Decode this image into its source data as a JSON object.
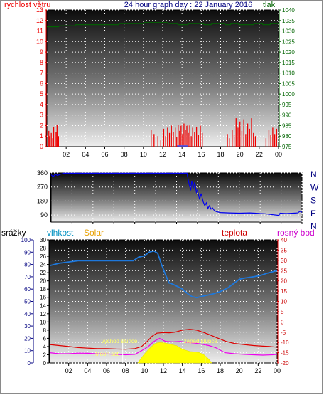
{
  "charts": [
    {
      "type": "bar",
      "title": "24 hour graph day : 22 January 2016",
      "left_axis_label": "rychlost větru",
      "right_axis_label": "tlak",
      "x_ticks": [
        "02",
        "04",
        "06",
        "08",
        "10",
        "12",
        "14",
        "16",
        "18",
        "20",
        "22",
        "00"
      ],
      "left_ticks": [
        "0",
        "1",
        "2",
        "3",
        "4",
        "5",
        "6",
        "7",
        "8",
        "9",
        "10",
        "11",
        "12",
        "13"
      ],
      "right_ticks": [
        "975",
        "980",
        "985",
        "990",
        "995",
        "1000",
        "1005",
        "1010",
        "1015",
        "1020",
        "1025",
        "1030",
        "1035",
        "1040"
      ],
      "colors": {
        "wind": "#ee0000",
        "pressure": "#006400",
        "title": "#000080"
      }
    },
    {
      "type": "line",
      "left_ticks": [
        "90",
        "180",
        "270",
        "360"
      ],
      "compass_ticks": [
        "N",
        "W",
        "S",
        "E",
        "N"
      ],
      "x_ticks": [
        "02",
        "04",
        "06",
        "08",
        "10",
        "12",
        "14",
        "16",
        "18",
        "20",
        "22",
        "00"
      ],
      "colors": {
        "direction": "#0000ee",
        "compass": "#000080"
      }
    },
    {
      "type": "line",
      "labels": {
        "rain": "srážky",
        "humidity": "vlhkost",
        "solar": "Solar",
        "temperature": "teplota",
        "dewpoint": "rosný bod"
      },
      "rain_ticks": [
        "0",
        "10",
        "20",
        "30",
        "40",
        "50",
        "60",
        "70",
        "80",
        "90",
        "100"
      ],
      "solar_ticks": [
        "0",
        "2",
        "4",
        "6",
        "8",
        "10",
        "12",
        "14",
        "16",
        "18",
        "20",
        "22",
        "24",
        "26",
        "28",
        "30"
      ],
      "temp_ticks": [
        "-20",
        "-15",
        "-10",
        "-5",
        "0",
        "5",
        "10",
        "15",
        "20",
        "25",
        "30",
        "35",
        "40"
      ],
      "x_ticks": [
        "02",
        "04",
        "06",
        "08",
        "10",
        "12",
        "14",
        "16",
        "18",
        "20",
        "22",
        "00"
      ],
      "annotations": {
        "sunrise": "východ slunce",
        "sunset": "západ slunce",
        "moonset": "Moon set"
      },
      "colors": {
        "rain": "#000080",
        "humidity": "#1e78dc",
        "solar": "#ffff00",
        "temperature": "#dd0000",
        "dewpoint": "#ee00ee",
        "rain_label": "#000000",
        "humidity_label": "#0090c0",
        "solar_label": "#e8a000",
        "temp_label": "#cc0000",
        "dew_label": "#cc00cc"
      }
    }
  ],
  "chart_data": [
    {
      "type": "bar",
      "name": "wind and pressure",
      "x_range_hours": [
        0,
        24
      ],
      "wind_ylim": [
        0,
        13
      ],
      "pressure_ylim": [
        975,
        1040
      ],
      "wind_bars": [
        [
          0.2,
          1.5
        ],
        [
          0.3,
          1.0
        ],
        [
          0.45,
          1.3
        ],
        [
          0.6,
          0.8
        ],
        [
          0.7,
          1.9
        ],
        [
          0.95,
          1.4
        ],
        [
          1.05,
          2.1
        ],
        [
          1.2,
          1.0
        ],
        [
          10.8,
          1.6
        ],
        [
          11.1,
          1.2
        ],
        [
          11.5,
          1.0
        ],
        [
          11.8,
          0.6
        ],
        [
          12.1,
          1.7
        ],
        [
          12.3,
          1.0
        ],
        [
          12.5,
          1.8
        ],
        [
          12.7,
          1.3
        ],
        [
          12.9,
          2.0
        ],
        [
          13.1,
          1.4
        ],
        [
          13.3,
          1.8
        ],
        [
          13.45,
          0.9
        ],
        [
          13.6,
          2.1
        ],
        [
          13.75,
          1.5
        ],
        [
          13.9,
          2.0
        ],
        [
          14.05,
          1.2
        ],
        [
          14.2,
          2.2
        ],
        [
          14.35,
          1.6
        ],
        [
          14.5,
          2.0
        ],
        [
          14.65,
          1.3
        ],
        [
          14.8,
          2.1
        ],
        [
          14.95,
          1.0
        ],
        [
          15.1,
          1.8
        ],
        [
          15.3,
          1.4
        ],
        [
          15.5,
          1.9
        ],
        [
          15.7,
          1.1
        ],
        [
          15.9,
          2.0
        ],
        [
          16.1,
          1.3
        ],
        [
          18.7,
          1.2
        ],
        [
          18.9,
          0.8
        ],
        [
          19.2,
          1.6
        ],
        [
          19.4,
          1.1
        ],
        [
          19.6,
          2.7
        ],
        [
          19.8,
          1.8
        ],
        [
          20.0,
          2.4
        ],
        [
          20.2,
          1.5
        ],
        [
          20.4,
          2.6
        ],
        [
          20.6,
          1.2
        ],
        [
          20.8,
          2.2
        ],
        [
          21.0,
          1.7
        ],
        [
          21.2,
          2.7
        ],
        [
          21.4,
          1.3
        ],
        [
          21.6,
          1.0
        ],
        [
          22.7,
          0.8
        ],
        [
          23.0,
          1.6
        ],
        [
          23.2,
          1.1
        ],
        [
          23.4,
          1.8
        ],
        [
          23.6,
          1.2
        ],
        [
          23.8,
          1.7
        ]
      ],
      "pressure_line": [
        [
          0,
          1032
        ],
        [
          1.2,
          1032
        ],
        [
          1.3,
          1032.5
        ],
        [
          2.9,
          1032.5
        ],
        [
          3.0,
          1033
        ],
        [
          7.4,
          1033
        ],
        [
          7.5,
          1033.5
        ],
        [
          10.0,
          1033.5
        ],
        [
          10.1,
          1034
        ],
        [
          12.5,
          1034
        ],
        [
          12.6,
          1033.5
        ],
        [
          13.5,
          1033.5
        ],
        [
          13.6,
          1033
        ],
        [
          14.6,
          1033
        ],
        [
          14.7,
          1033.5
        ],
        [
          16.2,
          1033.5
        ],
        [
          16.3,
          1033
        ],
        [
          17.0,
          1033
        ],
        [
          17.1,
          1033.5
        ],
        [
          18.4,
          1033.5
        ],
        [
          18.5,
          1033
        ],
        [
          19.0,
          1033
        ],
        [
          19.1,
          1033.5
        ],
        [
          19.8,
          1033.5
        ],
        [
          19.9,
          1033
        ],
        [
          21.4,
          1033
        ],
        [
          21.5,
          1033.5
        ],
        [
          22.3,
          1033.5
        ],
        [
          22.4,
          1033
        ],
        [
          23.1,
          1033
        ],
        [
          23.2,
          1033.5
        ],
        [
          24,
          1033.5
        ]
      ]
    },
    {
      "type": "line",
      "name": "wind direction",
      "x_range_hours": [
        0,
        24
      ],
      "ylim": [
        45,
        360
      ],
      "direction_line": [
        [
          0,
          348
        ],
        [
          0.2,
          336
        ],
        [
          0.4,
          352
        ],
        [
          0.6,
          344
        ],
        [
          0.9,
          352
        ],
        [
          1.2,
          358
        ],
        [
          13.0,
          358
        ],
        [
          13.2,
          290
        ],
        [
          13.35,
          248
        ],
        [
          13.45,
          310
        ],
        [
          13.6,
          262
        ],
        [
          13.75,
          300
        ],
        [
          13.9,
          236
        ],
        [
          14.0,
          250
        ],
        [
          14.2,
          190
        ],
        [
          14.35,
          228
        ],
        [
          14.55,
          175
        ],
        [
          14.7,
          150
        ],
        [
          14.85,
          168
        ],
        [
          15.0,
          132
        ],
        [
          15.15,
          150
        ],
        [
          15.3,
          128
        ],
        [
          15.45,
          136
        ],
        [
          15.6,
          120
        ],
        [
          15.8,
          112
        ],
        [
          16.2,
          106
        ],
        [
          17.0,
          104
        ],
        [
          18.0,
          102
        ],
        [
          19.0,
          104
        ],
        [
          19.5,
          102
        ],
        [
          20.0,
          100
        ],
        [
          20.5,
          98
        ],
        [
          21.0,
          94
        ],
        [
          21.8,
          88
        ],
        [
          21.9,
          102
        ],
        [
          22.5,
          100
        ],
        [
          23.2,
          102
        ],
        [
          23.6,
          104
        ],
        [
          23.8,
          114
        ],
        [
          24,
          108
        ]
      ]
    },
    {
      "type": "line",
      "name": "humidity, solar, temperature, dew point",
      "x_range_hours": [
        0,
        24
      ],
      "rain_ylim": [
        0,
        100
      ],
      "solar_ylim": [
        0,
        30
      ],
      "temp_ylim": [
        -20,
        40
      ],
      "humidity_line": [
        [
          0,
          79
        ],
        [
          1,
          81
        ],
        [
          2,
          82
        ],
        [
          3,
          83
        ],
        [
          4,
          83
        ],
        [
          5,
          83
        ],
        [
          6,
          83
        ],
        [
          7,
          83
        ],
        [
          8,
          83
        ],
        [
          8.8,
          83
        ],
        [
          9,
          84
        ],
        [
          9.4,
          86
        ],
        [
          10,
          87
        ],
        [
          10.5,
          90
        ],
        [
          11,
          91
        ],
        [
          11.4,
          89
        ],
        [
          11.8,
          80
        ],
        [
          12.2,
          72
        ],
        [
          12.6,
          65
        ],
        [
          13,
          64
        ],
        [
          13.5,
          62
        ],
        [
          14,
          60
        ],
        [
          14.6,
          56
        ],
        [
          15,
          54
        ],
        [
          15.5,
          53
        ],
        [
          16,
          54
        ],
        [
          16.6,
          55
        ],
        [
          17.2,
          56
        ],
        [
          18,
          58
        ],
        [
          18.8,
          61
        ],
        [
          19.5,
          65
        ],
        [
          20,
          68
        ],
        [
          20.6,
          69
        ],
        [
          21.5,
          70
        ],
        [
          22.2,
          71
        ],
        [
          23,
          73
        ],
        [
          24,
          75
        ]
      ],
      "temperature_line": [
        [
          0,
          -11
        ],
        [
          1,
          -11.5
        ],
        [
          2,
          -12
        ],
        [
          3,
          -12.5
        ],
        [
          4,
          -12.8
        ],
        [
          5,
          -13
        ],
        [
          6,
          -13
        ],
        [
          7,
          -13.2
        ],
        [
          8,
          -13.3
        ],
        [
          9,
          -13
        ],
        [
          9.7,
          -12
        ],
        [
          10.3,
          -9.5
        ],
        [
          10.8,
          -7
        ],
        [
          11.3,
          -5.5
        ],
        [
          12,
          -5.2
        ],
        [
          12.6,
          -5.3
        ],
        [
          13.2,
          -5
        ],
        [
          14,
          -4
        ],
        [
          14.8,
          -3.6
        ],
        [
          15.5,
          -4
        ],
        [
          16.2,
          -5
        ],
        [
          17,
          -6.5
        ],
        [
          17.8,
          -8
        ],
        [
          18.6,
          -9.5
        ],
        [
          19.5,
          -10.5
        ],
        [
          20.5,
          -11
        ],
        [
          21.5,
          -11.5
        ],
        [
          22.5,
          -11.8
        ],
        [
          23.2,
          -12
        ],
        [
          24,
          -12.3
        ]
      ],
      "dewpoint_line": [
        [
          0,
          -15
        ],
        [
          1,
          -15.5
        ],
        [
          2,
          -15.5
        ],
        [
          3,
          -15.2
        ],
        [
          4,
          -15.3
        ],
        [
          5,
          -15.5
        ],
        [
          6,
          -15.6
        ],
        [
          7,
          -15.8
        ],
        [
          8,
          -16
        ],
        [
          9,
          -15.8
        ],
        [
          9.7,
          -14
        ],
        [
          10.4,
          -12
        ],
        [
          11,
          -9.5
        ],
        [
          11.6,
          -8
        ],
        [
          12.2,
          -9.5
        ],
        [
          13,
          -9.7
        ],
        [
          13.8,
          -9.5
        ],
        [
          14.5,
          -10
        ],
        [
          15.3,
          -10.3
        ],
        [
          16,
          -10.8
        ],
        [
          16.8,
          -11.5
        ],
        [
          17.5,
          -12.5
        ],
        [
          18.5,
          -15
        ],
        [
          19.5,
          -15.5
        ],
        [
          20.5,
          -15.8
        ],
        [
          21.5,
          -16
        ],
        [
          22.5,
          -16.2
        ],
        [
          23.5,
          -16
        ],
        [
          24,
          -15.8
        ]
      ],
      "solar_area": [
        [
          9.3,
          0
        ],
        [
          9.6,
          1
        ],
        [
          10.0,
          2.2
        ],
        [
          10.4,
          3.2
        ],
        [
          10.8,
          4.1
        ],
        [
          11.2,
          4.8
        ],
        [
          11.6,
          5.0
        ],
        [
          12.0,
          4.9
        ],
        [
          12.5,
          4.7
        ],
        [
          13.0,
          4.4
        ],
        [
          13.4,
          4.2
        ],
        [
          13.8,
          3.6
        ],
        [
          14.2,
          3.2
        ],
        [
          14.8,
          2.8
        ],
        [
          15.3,
          2.7
        ],
        [
          15.8,
          2.5
        ],
        [
          16.1,
          2.2
        ],
        [
          16.4,
          1.8
        ],
        [
          16.8,
          0.9
        ],
        [
          17.1,
          0
        ]
      ],
      "sunrise_hour": 7.7,
      "sunset_hour": 16.4,
      "moonset_hour": 7.8
    }
  ]
}
